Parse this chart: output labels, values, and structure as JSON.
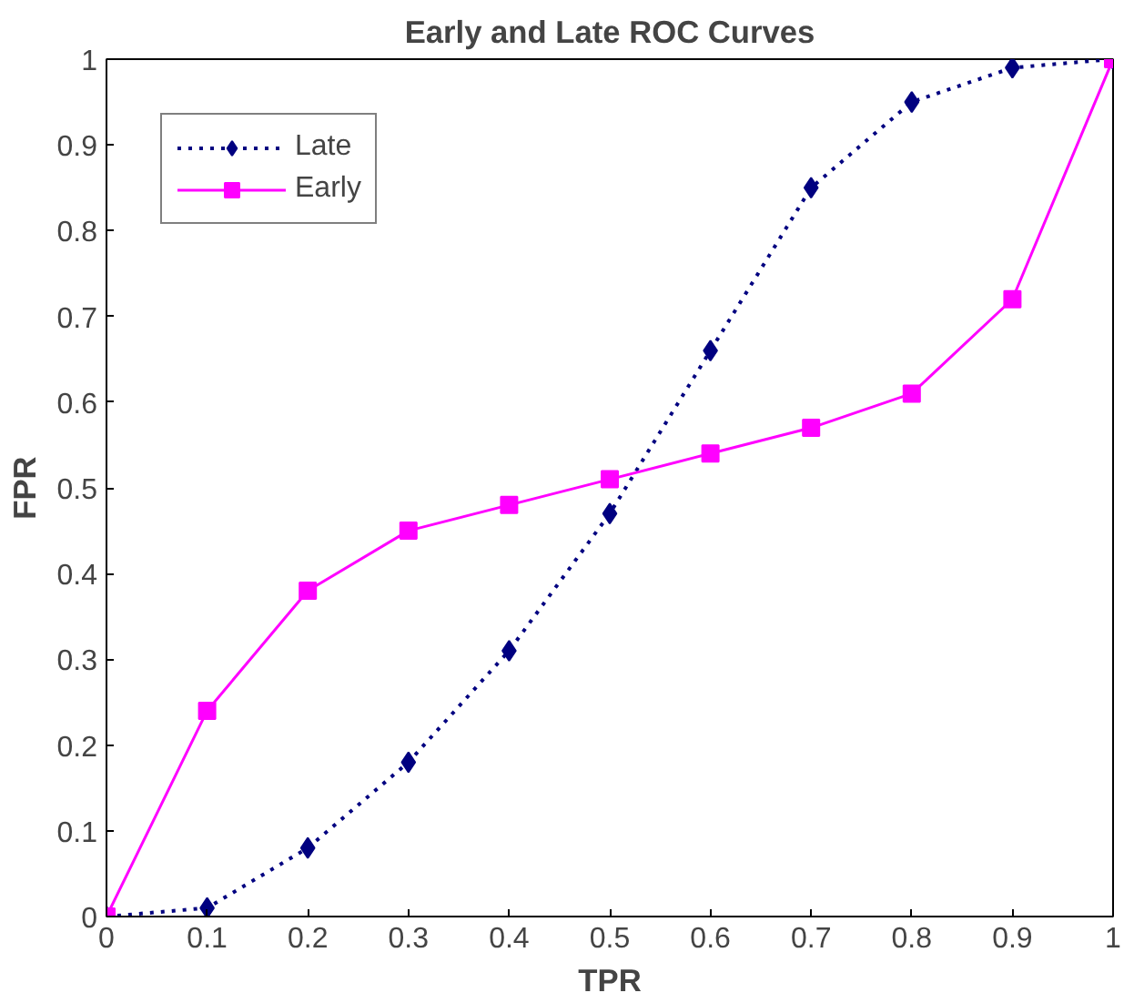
{
  "chart_data": {
    "type": "line",
    "title": "Early and Late ROC Curves",
    "xlabel": "TPR",
    "ylabel": "FPR",
    "x": [
      0,
      0.1,
      0.2,
      0.3,
      0.4,
      0.5,
      0.6,
      0.7,
      0.8,
      0.9,
      1
    ],
    "series": [
      {
        "name": "Late",
        "color": "#000080",
        "marker": "diamond",
        "line_style": "dotted",
        "values": [
          0,
          0.01,
          0.08,
          0.18,
          0.31,
          0.47,
          0.66,
          0.85,
          0.95,
          0.99,
          1
        ]
      },
      {
        "name": "Early",
        "color": "#ff00ff",
        "marker": "square",
        "line_style": "solid",
        "values": [
          0,
          0.24,
          0.38,
          0.45,
          0.48,
          0.51,
          0.54,
          0.57,
          0.61,
          0.72,
          1
        ]
      }
    ],
    "xlim": [
      0,
      1
    ],
    "ylim": [
      0,
      1
    ],
    "xticks": [
      0,
      0.1,
      0.2,
      0.3,
      0.4,
      0.5,
      0.6,
      0.7,
      0.8,
      0.9,
      1
    ],
    "yticks": [
      0,
      0.1,
      0.2,
      0.3,
      0.4,
      0.5,
      0.6,
      0.7,
      0.8,
      0.9,
      1
    ],
    "grid": false,
    "legend": "top left"
  }
}
